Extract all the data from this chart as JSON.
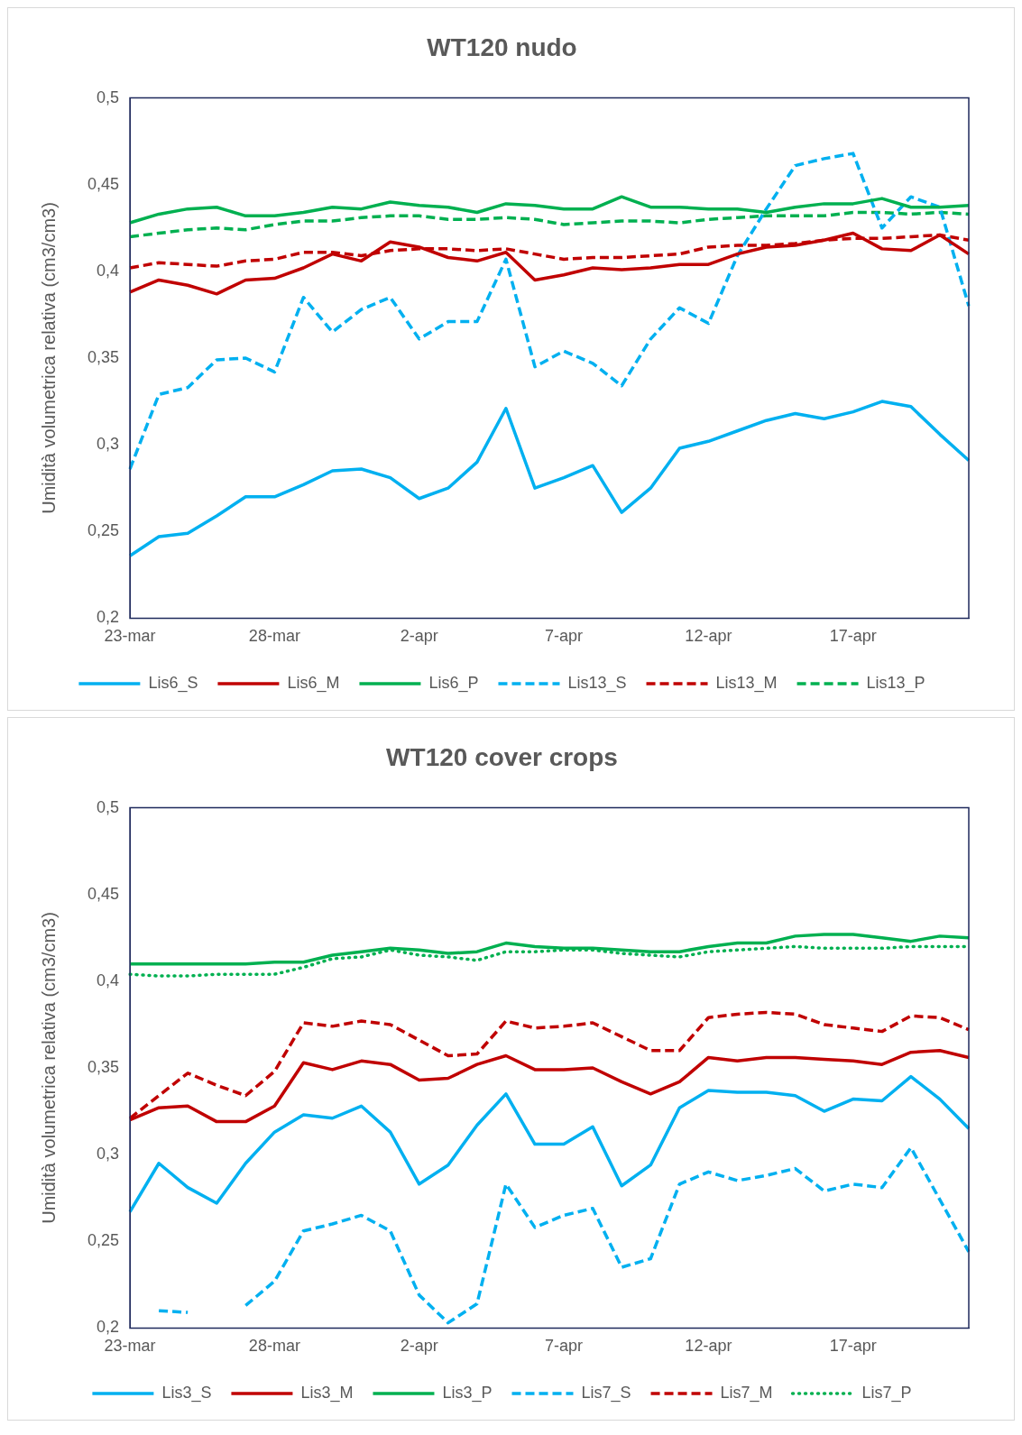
{
  "chart_data": [
    {
      "type": "line",
      "title": "WT120 nudo",
      "ylabel": "Umidità volumetrica relativa (cm3/cm3)",
      "categories": [
        "23-mar",
        null,
        null,
        null,
        null,
        "28-mar",
        null,
        null,
        null,
        null,
        "2-apr",
        null,
        null,
        null,
        null,
        "7-apr",
        null,
        null,
        null,
        null,
        "12-apr",
        null,
        null,
        null,
        null,
        "17-apr",
        null,
        null,
        null,
        null
      ],
      "ylim": [
        0.2,
        0.5
      ],
      "yticks": [
        {
          "value": 0.2,
          "label": "0,2"
        },
        {
          "value": 0.25,
          "label": "0,25"
        },
        {
          "value": 0.3,
          "label": "0,3"
        },
        {
          "value": 0.35,
          "label": "0,35"
        },
        {
          "value": 0.4,
          "label": "0,4"
        },
        {
          "value": 0.45,
          "label": "0,45"
        },
        {
          "value": 0.5,
          "label": "0,5"
        }
      ],
      "grid": false,
      "legend": "bottom",
      "marker": "none",
      "series": [
        {
          "name": "Lis6_S",
          "color": "#00b0f0",
          "line_style": "solid",
          "values": [
            0.236,
            0.247,
            0.249,
            0.259,
            0.27,
            0.27,
            0.277,
            0.285,
            0.286,
            0.281,
            0.269,
            0.275,
            0.29,
            0.321,
            0.275,
            0.281,
            0.288,
            0.261,
            0.275,
            0.298,
            0.302,
            0.308,
            0.314,
            0.318,
            0.315,
            0.319,
            0.325,
            0.322,
            0.306,
            0.291
          ]
        },
        {
          "name": "Lis6_M",
          "color": "#c00000",
          "line_style": "solid",
          "values": [
            0.388,
            0.395,
            0.392,
            0.387,
            0.395,
            0.396,
            0.402,
            0.41,
            0.406,
            0.417,
            0.414,
            0.408,
            0.406,
            0.411,
            0.395,
            0.398,
            0.402,
            0.401,
            0.402,
            0.404,
            0.404,
            0.41,
            0.414,
            0.415,
            0.418,
            0.422,
            0.413,
            0.412,
            0.421,
            0.41
          ]
        },
        {
          "name": "Lis6_P",
          "color": "#00b050",
          "line_style": "solid",
          "values": [
            0.428,
            0.433,
            0.436,
            0.437,
            0.432,
            0.432,
            0.434,
            0.437,
            0.436,
            0.44,
            0.438,
            0.437,
            0.434,
            0.439,
            0.438,
            0.436,
            0.436,
            0.443,
            0.437,
            0.437,
            0.436,
            0.436,
            0.434,
            0.437,
            0.439,
            0.439,
            0.442,
            0.437,
            0.437,
            0.438
          ]
        },
        {
          "name": "Lis13_S",
          "color": "#00b0f0",
          "line_style": "dashed",
          "values": [
            0.286,
            0.329,
            0.333,
            0.349,
            0.35,
            0.342,
            0.385,
            0.365,
            0.378,
            0.385,
            0.361,
            0.371,
            0.371,
            0.407,
            0.345,
            0.354,
            0.347,
            0.334,
            0.361,
            0.379,
            0.37,
            0.409,
            0.436,
            0.461,
            0.465,
            0.468,
            0.425,
            0.443,
            0.437,
            0.38
          ]
        },
        {
          "name": "Lis13_M",
          "color": "#c00000",
          "line_style": "dashed",
          "values": [
            0.402,
            0.405,
            0.404,
            0.403,
            0.406,
            0.407,
            0.411,
            0.411,
            0.409,
            0.412,
            0.413,
            0.413,
            0.412,
            0.413,
            0.41,
            0.407,
            0.408,
            0.408,
            0.409,
            0.41,
            0.414,
            0.415,
            0.415,
            0.416,
            0.418,
            0.419,
            0.419,
            0.42,
            0.421,
            0.418
          ]
        },
        {
          "name": "Lis13_P",
          "color": "#00b050",
          "line_style": "dashed",
          "values": [
            0.42,
            0.422,
            0.424,
            0.425,
            0.424,
            0.427,
            0.429,
            0.429,
            0.431,
            0.432,
            0.432,
            0.43,
            0.43,
            0.431,
            0.43,
            0.427,
            0.428,
            0.429,
            0.429,
            0.428,
            0.43,
            0.431,
            0.432,
            0.432,
            0.432,
            0.434,
            0.434,
            0.433,
            0.434,
            0.433
          ]
        }
      ]
    },
    {
      "type": "line",
      "title": "WT120 cover crops",
      "ylabel": "Umidità volumetrica relativa (cm3/cm3)",
      "categories": [
        "23-mar",
        null,
        null,
        null,
        null,
        "28-mar",
        null,
        null,
        null,
        null,
        "2-apr",
        null,
        null,
        null,
        null,
        "7-apr",
        null,
        null,
        null,
        null,
        "12-apr",
        null,
        null,
        null,
        null,
        "17-apr",
        null,
        null,
        null,
        null
      ],
      "ylim": [
        0.2,
        0.5
      ],
      "yticks": [
        {
          "value": 0.2,
          "label": "0,2"
        },
        {
          "value": 0.25,
          "label": "0,25"
        },
        {
          "value": 0.3,
          "label": "0,3"
        },
        {
          "value": 0.35,
          "label": "0,35"
        },
        {
          "value": 0.4,
          "label": "0,4"
        },
        {
          "value": 0.45,
          "label": "0,45"
        },
        {
          "value": 0.5,
          "label": "0,5"
        }
      ],
      "grid": false,
      "legend": "bottom",
      "marker": "none",
      "series": [
        {
          "name": "Lis3_S",
          "color": "#00b0f0",
          "line_style": "solid",
          "values": [
            0.267,
            0.295,
            0.281,
            0.272,
            0.295,
            0.313,
            0.323,
            0.321,
            0.328,
            0.313,
            0.283,
            0.294,
            0.317,
            0.335,
            0.306,
            0.306,
            0.316,
            0.282,
            0.294,
            0.327,
            0.337,
            0.336,
            0.336,
            0.334,
            0.325,
            0.332,
            0.331,
            0.345,
            0.332,
            0.315
          ]
        },
        {
          "name": "Lis3_M",
          "color": "#c00000",
          "line_style": "solid",
          "values": [
            0.32,
            0.327,
            0.328,
            0.319,
            0.319,
            0.328,
            0.353,
            0.349,
            0.354,
            0.352,
            0.343,
            0.344,
            0.352,
            0.357,
            0.349,
            0.349,
            0.35,
            0.342,
            0.335,
            0.342,
            0.356,
            0.354,
            0.356,
            0.356,
            0.355,
            0.354,
            0.352,
            0.359,
            0.36,
            0.356
          ]
        },
        {
          "name": "Lis3_P",
          "color": "#00b050",
          "line_style": "solid",
          "values": [
            0.41,
            0.41,
            0.41,
            0.41,
            0.41,
            0.411,
            0.411,
            0.415,
            0.417,
            0.419,
            0.418,
            0.416,
            0.417,
            0.422,
            0.42,
            0.419,
            0.419,
            0.418,
            0.417,
            0.417,
            0.42,
            0.422,
            0.422,
            0.426,
            0.427,
            0.427,
            0.425,
            0.423,
            0.426,
            0.425
          ]
        },
        {
          "name": "Lis7_S",
          "color": "#00b0f0",
          "line_style": "dashed",
          "values": [
            null,
            0.21,
            0.209,
            null,
            0.213,
            0.227,
            0.256,
            0.26,
            0.265,
            0.256,
            0.219,
            0.203,
            0.214,
            0.283,
            0.258,
            0.265,
            0.269,
            0.235,
            0.24,
            0.283,
            0.29,
            0.285,
            0.288,
            0.292,
            0.279,
            0.283,
            0.281,
            0.304,
            0.274,
            0.244
          ]
        },
        {
          "name": "Lis7_M",
          "color": "#c00000",
          "line_style": "dashed",
          "values": [
            0.321,
            0.334,
            0.347,
            0.34,
            0.334,
            0.348,
            0.376,
            0.374,
            0.377,
            0.375,
            0.366,
            0.357,
            0.358,
            0.377,
            0.373,
            0.374,
            0.376,
            0.368,
            0.36,
            0.36,
            0.379,
            0.381,
            0.382,
            0.381,
            0.375,
            0.373,
            0.371,
            0.38,
            0.379,
            0.372
          ]
        },
        {
          "name": "Lis7_P",
          "color": "#00b050",
          "line_style": "dotted",
          "values": [
            0.404,
            0.403,
            0.403,
            0.404,
            0.404,
            0.404,
            0.408,
            0.413,
            0.414,
            0.418,
            0.415,
            0.414,
            0.412,
            0.417,
            0.417,
            0.418,
            0.418,
            0.416,
            0.415,
            0.414,
            0.417,
            0.418,
            0.419,
            0.42,
            0.419,
            0.419,
            0.419,
            0.42,
            0.42,
            0.42
          ]
        }
      ]
    }
  ]
}
